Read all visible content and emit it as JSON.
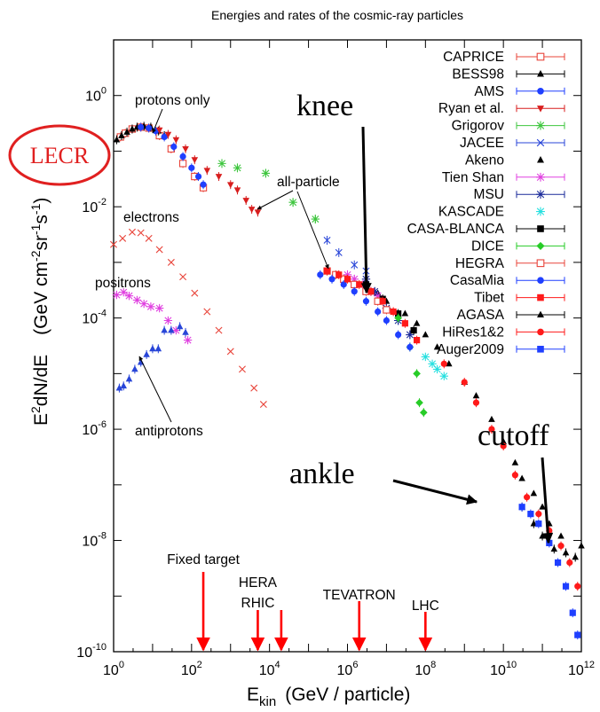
{
  "chart_data": {
    "type": "scatter",
    "title": "Energies and rates of the cosmic-ray particles",
    "xlabel": {
      "base": "E",
      "sub": "kin",
      "unit": "(GeV / particle)"
    },
    "ylabel": {
      "main": "E",
      "sup": "2",
      "rest": "dN/dE",
      "unit": "(GeV cm",
      "u1": "-2",
      "u2": "sr",
      "u3": "-1",
      "u4": "s",
      "u5": "-1",
      "u6": ")"
    },
    "xscale": "log",
    "yscale": "log",
    "xlim": [
      1,
      1000000000000.0
    ],
    "ylim": [
      1e-10,
      10
    ],
    "x_ticks": [
      {
        "v": 1,
        "b": "10",
        "e": "0"
      },
      {
        "v": 100,
        "b": "10",
        "e": "2"
      },
      {
        "v": 10000,
        "b": "10",
        "e": "4"
      },
      {
        "v": 1000000,
        "b": "10",
        "e": "6"
      },
      {
        "v": 100000000,
        "b": "10",
        "e": "8"
      },
      {
        "v": 10000000000,
        "b": "10",
        "e": "10"
      },
      {
        "v": 1000000000000,
        "b": "10",
        "e": "12"
      }
    ],
    "y_ticks": [
      {
        "v": 1e-10,
        "b": "10",
        "e": "-10"
      },
      {
        "v": 1e-08,
        "b": "10",
        "e": "-8"
      },
      {
        "v": 1e-06,
        "b": "10",
        "e": "-6"
      },
      {
        "v": 0.0001,
        "b": "10",
        "e": "-4"
      },
      {
        "v": 0.01,
        "b": "10",
        "e": "-2"
      },
      {
        "v": 1,
        "b": "10",
        "e": "0"
      }
    ],
    "legend_position": "top-right",
    "series": [
      {
        "name": "CAPRICE",
        "color": "#e8443a",
        "marker": "square-open",
        "errorbar": true,
        "points": [
          [
            1.5,
            0.18
          ],
          [
            2,
            0.21
          ],
          [
            3,
            0.25
          ],
          [
            5,
            0.27
          ],
          [
            8,
            0.26
          ],
          [
            15,
            0.19
          ],
          [
            30,
            0.11
          ],
          [
            60,
            0.06
          ],
          [
            120,
            0.035
          ],
          [
            200,
            0.022
          ]
        ]
      },
      {
        "name": "BESS98",
        "color": "#000000",
        "marker": "triangle",
        "errorbar": true,
        "points": [
          [
            1.2,
            0.16
          ],
          [
            1.6,
            0.19
          ],
          [
            2.2,
            0.22
          ],
          [
            3,
            0.25
          ],
          [
            4,
            0.27
          ],
          [
            6,
            0.28
          ],
          [
            9,
            0.27
          ],
          [
            14,
            0.23
          ],
          [
            20,
            0.19
          ]
        ]
      },
      {
        "name": "AMS",
        "color": "#1f3fff",
        "marker": "circle",
        "errorbar": true,
        "points": [
          [
            5,
            0.27
          ],
          [
            8,
            0.26
          ],
          [
            12,
            0.23
          ],
          [
            20,
            0.18
          ],
          [
            35,
            0.12
          ],
          [
            60,
            0.08
          ],
          [
            100,
            0.05
          ],
          [
            150,
            0.035
          ],
          [
            200,
            0.025
          ]
        ]
      },
      {
        "name": "Ryan et al.",
        "color": "#d81e1e",
        "marker": "triangle-down",
        "errorbar": true,
        "points": [
          [
            15,
            0.24
          ],
          [
            25,
            0.2
          ],
          [
            40,
            0.16
          ],
          [
            70,
            0.11
          ],
          [
            120,
            0.07
          ],
          [
            250,
            0.045
          ],
          [
            500,
            0.035
          ],
          [
            1000,
            0.025
          ],
          [
            1500,
            0.02
          ],
          [
            2500,
            0.013
          ],
          [
            3500,
            0.009
          ],
          [
            5000,
            0.008
          ]
        ]
      },
      {
        "name": "Grigorov",
        "color": "#3ec63e",
        "marker": "star",
        "errorbar": true,
        "points": [
          [
            600,
            0.06
          ],
          [
            1500,
            0.05
          ],
          [
            8000,
            0.04
          ],
          [
            40000,
            0.012
          ],
          [
            150000,
            0.006
          ]
        ]
      },
      {
        "name": "JACEE",
        "color": "#2845d8",
        "marker": "x",
        "errorbar": true,
        "points": [
          [
            300000,
            0.0025
          ],
          [
            600000,
            0.0015
          ],
          [
            1500000,
            0.0009
          ],
          [
            3000000,
            0.0007
          ]
        ]
      },
      {
        "name": "Akeno",
        "color": "#000000",
        "marker": "triangle",
        "errorbar": false,
        "points": [
          [
            3000000,
            0.0004
          ],
          [
            6000000,
            0.00028
          ],
          [
            10000000,
            0.0002
          ],
          [
            30000000,
            0.00012
          ],
          [
            60000000,
            8e-05
          ],
          [
            100000000,
            5e-05
          ],
          [
            200000000,
            3e-05
          ],
          [
            400000000,
            1.5e-05
          ],
          [
            1000000000,
            7e-06
          ],
          [
            2000000000,
            4e-06
          ],
          [
            5000000000,
            1.5e-06
          ],
          [
            10000000000,
            6e-07
          ],
          [
            20000000000,
            2.5e-07
          ],
          [
            30000000000,
            1.3e-07
          ],
          [
            60000000000,
            7e-08
          ],
          [
            100000000000,
            4e-08
          ],
          [
            150000000000,
            2e-08
          ],
          [
            300000000000,
            1.2e-08
          ],
          [
            1000000000000,
            8e-09
          ]
        ]
      },
      {
        "name": "Tien Shan",
        "color": "#e040e0",
        "marker": "star",
        "errorbar": true,
        "points": [
          [
            1000000,
            0.0006
          ],
          [
            1500000,
            0.0005
          ],
          [
            2500000,
            0.0004
          ],
          [
            4000000,
            0.0003
          ],
          [
            6000000,
            0.00025
          ]
        ]
      },
      {
        "name": "MSU",
        "color": "#1a2a9a",
        "marker": "star",
        "errorbar": true,
        "points": [
          [
            3000000,
            0.0005
          ],
          [
            5000000,
            0.0003
          ],
          [
            10000000,
            0.00015
          ],
          [
            20000000,
            9e-05
          ],
          [
            40000000,
            5e-05
          ]
        ]
      },
      {
        "name": "KASCADE",
        "color": "#26e0e0",
        "marker": "star",
        "errorbar": false,
        "points": [
          [
            100000000,
            2e-05
          ],
          [
            150000000,
            1.5e-05
          ],
          [
            200000000,
            1.2e-05
          ],
          [
            300000000,
            9e-06
          ]
        ]
      },
      {
        "name": "CASA-BLANCA",
        "color": "#000000",
        "marker": "square",
        "errorbar": true,
        "points": [
          [
            3000000,
            0.0004
          ],
          [
            8000000,
            0.00022
          ],
          [
            20000000,
            0.00012
          ],
          [
            50000000,
            6e-05
          ]
        ]
      },
      {
        "name": "DICE",
        "color": "#27cc27",
        "marker": "diamond",
        "errorbar": true,
        "points": [
          [
            20000000,
            0.0001
          ],
          [
            40000000,
            3e-05
          ],
          [
            60000000,
            1e-05
          ],
          [
            70000000,
            3e-06
          ],
          [
            90000000,
            2e-06
          ]
        ]
      },
      {
        "name": "HEGRA",
        "color": "#e8443a",
        "marker": "square-open",
        "errorbar": true,
        "points": [
          [
            300000,
            0.0007
          ],
          [
            500000,
            0.0006
          ],
          [
            800000,
            0.0005
          ],
          [
            1500000,
            0.0004
          ],
          [
            3000000,
            0.0003
          ],
          [
            6000000,
            0.0002
          ],
          [
            10000000,
            0.00014
          ]
        ]
      },
      {
        "name": "CasaMia",
        "color": "#1f3fff",
        "marker": "circle",
        "errorbar": true,
        "points": [
          [
            200000,
            0.0006
          ],
          [
            400000,
            0.0005
          ],
          [
            800000,
            0.0004
          ],
          [
            1500000,
            0.0003
          ],
          [
            3000000,
            0.0002
          ],
          [
            6000000,
            0.00013
          ],
          [
            10000000,
            9e-05
          ],
          [
            20000000,
            5e-05
          ],
          [
            40000000,
            3e-05
          ]
        ]
      },
      {
        "name": "Tibet",
        "color": "#ff1a1a",
        "marker": "square",
        "errorbar": true,
        "points": [
          [
            300000,
            0.0007
          ],
          [
            600000,
            0.0006
          ],
          [
            1000000,
            0.0005
          ],
          [
            2000000,
            0.0004
          ],
          [
            4000000,
            0.0003
          ],
          [
            8000000,
            0.0002
          ],
          [
            15000000,
            0.00013
          ],
          [
            30000000,
            8e-05
          ],
          [
            60000000,
            4e-05
          ]
        ]
      },
      {
        "name": "AGASA",
        "color": "#000000",
        "marker": "triangle",
        "errorbar": true,
        "points": [
          [
            30000000000,
            4e-08
          ],
          [
            60000000000,
            2e-08
          ],
          [
            100000000000,
            1.2e-08
          ],
          [
            200000000000,
            7e-09
          ],
          [
            400000000000,
            6e-09
          ],
          [
            700000000000,
            5e-09
          ]
        ]
      },
      {
        "name": "HiRes1&2",
        "color": "#ff1a1a",
        "marker": "circle",
        "errorbar": true,
        "points": [
          [
            300000000,
            1.5e-05
          ],
          [
            1000000000,
            7e-06
          ],
          [
            2000000000,
            3e-06
          ],
          [
            5000000000,
            1e-06
          ],
          [
            10000000000,
            5e-07
          ],
          [
            20000000000,
            1.5e-07
          ],
          [
            40000000000,
            6e-08
          ],
          [
            80000000000,
            3e-08
          ],
          [
            150000000000,
            1.5e-08
          ],
          [
            300000000000,
            8e-09
          ],
          [
            500000000000,
            4e-09
          ],
          [
            800000000000,
            1.5e-09
          ]
        ]
      },
      {
        "name": "Auger2009",
        "color": "#1f3fff",
        "marker": "square",
        "errorbar": true,
        "points": [
          [
            30000000000,
            4e-08
          ],
          [
            50000000000,
            3e-08
          ],
          [
            80000000000,
            2e-08
          ],
          [
            150000000000,
            9e-09
          ],
          [
            250000000000,
            4e-09
          ],
          [
            400000000000,
            1.5e-09
          ],
          [
            600000000000,
            5e-10
          ],
          [
            800000000000,
            2e-10
          ]
        ]
      },
      {
        "name": "",
        "color": "#e8443a",
        "marker": "x",
        "errorbar": false,
        "points": [
          [
            1,
            0.0021
          ],
          [
            1.7,
            0.0027
          ],
          [
            3,
            0.0035
          ],
          [
            5,
            0.0034
          ],
          [
            8,
            0.0027
          ],
          [
            15,
            0.0017
          ],
          [
            30,
            0.001
          ],
          [
            60,
            0.00055
          ],
          [
            120,
            0.00028
          ],
          [
            250,
            0.00013
          ],
          [
            500,
            6e-05
          ],
          [
            1000,
            2.5e-05
          ],
          [
            2000,
            1.2e-05
          ],
          [
            4000,
            5.5e-06
          ],
          [
            7000,
            2.8e-06
          ]
        ]
      },
      {
        "name": "",
        "color": "#e040e0",
        "marker": "star",
        "errorbar": false,
        "points": [
          [
            1.2,
            0.00026
          ],
          [
            1.8,
            0.00029
          ],
          [
            2.5,
            0.00025
          ],
          [
            4,
            0.00021
          ],
          [
            6,
            0.00018
          ],
          [
            9,
            0.00016
          ],
          [
            15,
            0.00015
          ],
          [
            25,
            9e-05
          ],
          [
            40,
            6e-05
          ],
          [
            80,
            4e-05
          ]
        ]
      },
      {
        "name": "",
        "color": "#2845d8",
        "marker": "triangle",
        "errorbar": true,
        "points": [
          [
            1.4,
            5.5e-06
          ],
          [
            1.8,
            6e-06
          ],
          [
            2.5,
            8e-06
          ],
          [
            3.5,
            1.2e-05
          ],
          [
            5,
            1.6e-05
          ],
          [
            7,
            2.2e-05
          ],
          [
            10,
            2.8e-05
          ],
          [
            14,
            2.8e-05
          ],
          [
            20,
            6e-05
          ],
          [
            30,
            6e-05
          ],
          [
            50,
            7e-05
          ],
          [
            70,
            5.5e-05
          ]
        ]
      }
    ],
    "annotations": {
      "protons": "protons only",
      "allparticle": "all-particle",
      "electrons": "electrons",
      "positrons": "positrons",
      "antiprotons": "antiprotons",
      "knee": "knee",
      "ankle": "ankle",
      "cutoff": "cutoff",
      "lecr": "LECR"
    },
    "accelerators": [
      {
        "lines": [
          "Fixed target"
        ],
        "x": 200
      },
      {
        "lines": [
          "HERA",
          "RHIC"
        ],
        "x": 5000
      },
      {
        "lines": [
          ""
        ],
        "x": 20000
      },
      {
        "lines": [
          "TEVATRON"
        ],
        "x": 2000000
      },
      {
        "lines": [
          "LHC"
        ],
        "x": 100000000
      }
    ]
  }
}
